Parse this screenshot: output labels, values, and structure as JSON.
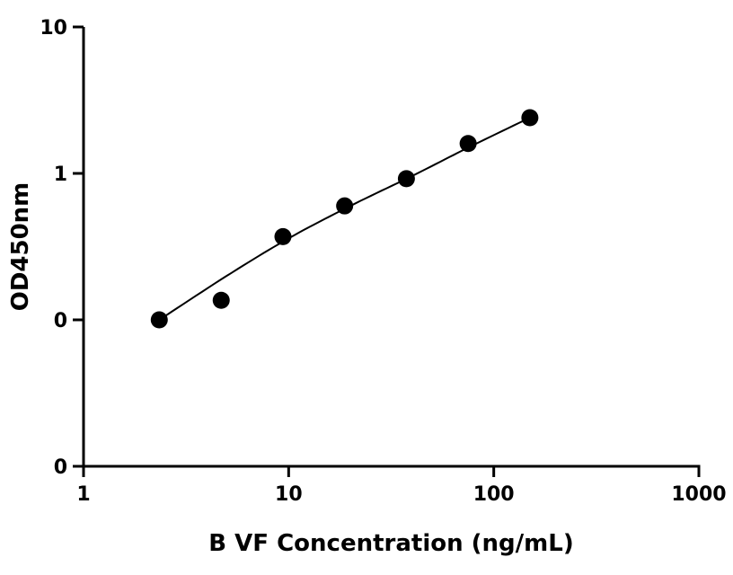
{
  "chart_data": {
    "type": "scatter",
    "xlabel": "B VF Concentration (ng/mL)",
    "ylabel": "OD450nm",
    "x_scale": "log",
    "y_scale": "log",
    "xlim": [
      1,
      1000
    ],
    "ylim": [
      0.01,
      10
    ],
    "x_ticks": [
      1,
      10,
      100,
      1000
    ],
    "x_tick_labels": [
      "1",
      "10",
      "100",
      "1000"
    ],
    "y_ticks": [
      0.01,
      0.1,
      1,
      10
    ],
    "y_tick_labels": [
      "0",
      "0",
      "1",
      "10"
    ],
    "grid": false,
    "legend": "none",
    "marker_color": "#000000",
    "series": [
      {
        "x": [
          2.34,
          4.69,
          9.38,
          18.75,
          37.5,
          75,
          150
        ],
        "y": [
          0.1,
          0.136,
          0.37,
          0.6,
          0.92,
          1.6,
          2.4
        ]
      }
    ],
    "fit_curve": {
      "x": [
        2.34,
        5,
        10,
        20,
        40,
        75,
        150
      ],
      "y": [
        0.1,
        0.2,
        0.36,
        0.6,
        0.96,
        1.5,
        2.4
      ]
    }
  }
}
